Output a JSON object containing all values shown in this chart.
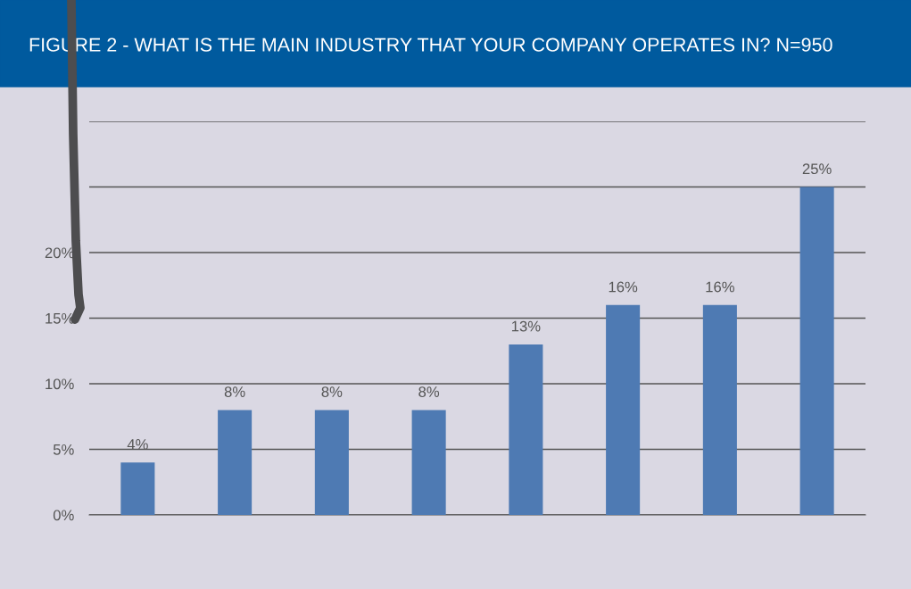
{
  "chart_data": {
    "type": "bar",
    "title": "FIGURE 2 - WHAT IS THE MAIN INDUSTRY THAT YOUR COMPANY OPERATES IN? N=950",
    "categories": [
      null,
      null,
      null,
      null,
      null,
      null,
      null,
      null
    ],
    "values": [
      4,
      8,
      8,
      8,
      13,
      16,
      16,
      25
    ],
    "color": "#4e7ab3",
    "value_labels": [
      "4%",
      "8%",
      "8%",
      "8%",
      "13%",
      "16%",
      "16%",
      "25%"
    ],
    "ylim": [
      0,
      30
    ],
    "yticks": [
      {
        "value": 0,
        "label": "0%"
      },
      {
        "value": 5,
        "label": "5%"
      },
      {
        "value": 10,
        "label": "10%"
      },
      {
        "value": 15,
        "label": "15%"
      },
      {
        "value": 20,
        "label": "20%"
      },
      {
        "value": 25,
        "label": null
      },
      {
        "value": 30,
        "label": null
      }
    ],
    "grid": "y"
  }
}
